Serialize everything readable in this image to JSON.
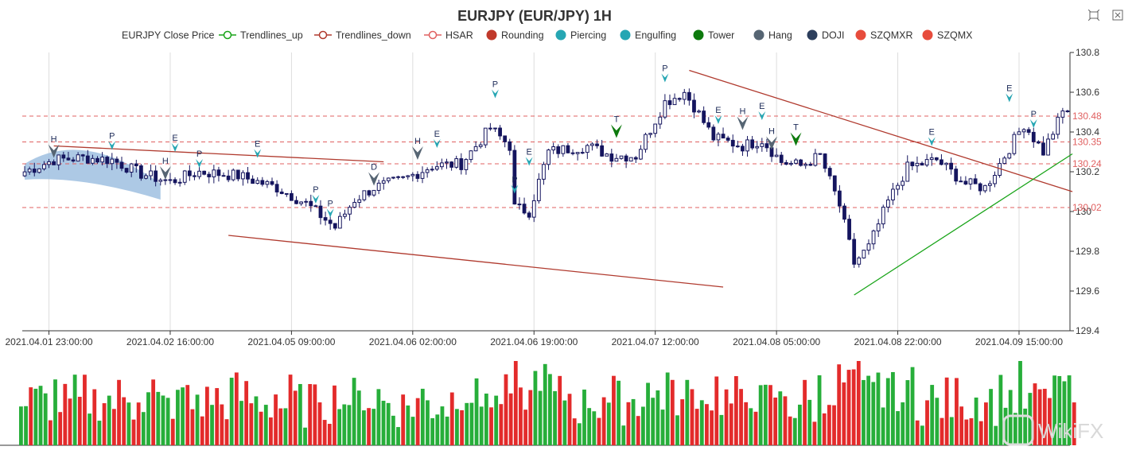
{
  "title": "EURJPY (EUR/JPY) 1H",
  "toolbar": {
    "icons": [
      "zoom-icon",
      "restore-icon"
    ]
  },
  "watermark": "WikiFX",
  "legend": [
    {
      "label": "EURJPY Close Price",
      "marker": "none",
      "color": "#333333"
    },
    {
      "label": "Trendlines_up",
      "marker": "line-circle",
      "color": "#18a418"
    },
    {
      "label": "Trendlines_down",
      "marker": "line-circle",
      "color": "#b03a2e"
    },
    {
      "label": "HSAR",
      "marker": "line-circle",
      "color": "#e06060"
    },
    {
      "label": "Rounding",
      "marker": "dot",
      "color": "#c0392b"
    },
    {
      "label": "Piercing",
      "marker": "dot",
      "color": "#26a6b3"
    },
    {
      "label": "Engulfing",
      "marker": "dot",
      "color": "#26a6b3"
    },
    {
      "label": "Tower",
      "marker": "dot",
      "color": "#0d7a0d"
    },
    {
      "label": "Hang",
      "marker": "dot",
      "color": "#566573"
    },
    {
      "label": "DOJI",
      "marker": "dot",
      "color": "#2c3e5c"
    },
    {
      "label": "SZQMXR",
      "marker": "dot",
      "color": "#e74c3c"
    },
    {
      "label": "SZQMX",
      "marker": "dot",
      "color": "#e74c3c"
    }
  ],
  "chart_data": {
    "type": "candlestick",
    "ylim": [
      129.4,
      130.8
    ],
    "y_ticks": [
      129.4,
      129.6,
      129.8,
      130,
      130.2,
      130.4,
      130.6,
      130.8
    ],
    "x_tick_labels": [
      "2021.04.01 23:00:00",
      "2021.04.02 16:00:00",
      "2021.04.05 09:00:00",
      "2021.04.06 02:00:00",
      "2021.04.06 19:00:00",
      "2021.04.07 12:00:00",
      "2021.04.08 05:00:00",
      "2021.04.08 22:00:00",
      "2021.04.09 15:00:00"
    ],
    "x_tick_bar_index": [
      5,
      30,
      55,
      80,
      105,
      130,
      155,
      180,
      205
    ],
    "bar_count": 216,
    "hsar_levels": [
      130.48,
      130.35,
      130.24,
      130.02
    ],
    "colors": {
      "candle": "#15155e",
      "hsar": "#e06060",
      "trend_up": "#18a418",
      "trend_down": "#b03a2e",
      "vol_up": "#27ae3a",
      "vol_down": "#e32b2b",
      "rounding": "#9fbfe0",
      "piercing": "#26a6b3",
      "tower": "#0d7a0d",
      "hang": "#566573"
    },
    "trendlines_down": [
      {
        "from": {
          "bar": 6,
          "price": 130.33
        },
        "to": {
          "bar": 74,
          "price": 130.25
        }
      },
      {
        "from": {
          "bar": 42,
          "price": 129.88
        },
        "to": {
          "bar": 144,
          "price": 129.62
        }
      },
      {
        "from": {
          "bar": 137,
          "price": 130.71
        },
        "to": {
          "bar": 216,
          "price": 130.1
        }
      }
    ],
    "trendlines_up": [
      {
        "from": {
          "bar": 171,
          "price": 129.58
        },
        "to": {
          "bar": 216,
          "price": 130.29
        }
      }
    ],
    "rounding": {
      "start_bar": 0,
      "end_bar": 28,
      "start_price": 130.2,
      "peak_bar": 12,
      "peak_price": 130.3,
      "end_price": 130.1
    },
    "pattern_marks": [
      {
        "label": "H",
        "bar": 6,
        "price": 130.27,
        "type": "hang"
      },
      {
        "label": "P",
        "bar": 18,
        "price": 130.31,
        "type": "piercing"
      },
      {
        "label": "E",
        "bar": 31,
        "price": 130.3,
        "type": "piercing"
      },
      {
        "label": "H",
        "bar": 29,
        "price": 130.16,
        "type": "hang"
      },
      {
        "label": "P",
        "bar": 36,
        "price": 130.22,
        "type": "piercing"
      },
      {
        "label": "E",
        "bar": 48,
        "price": 130.27,
        "type": "piercing"
      },
      {
        "label": "D",
        "bar": 72,
        "price": 130.13,
        "type": "hang"
      },
      {
        "label": "H",
        "bar": 81,
        "price": 130.26,
        "type": "hang"
      },
      {
        "label": "E",
        "bar": 85,
        "price": 130.32,
        "type": "piercing"
      },
      {
        "label": "P",
        "bar": 60,
        "price": 130.04,
        "type": "piercing"
      },
      {
        "label": "P",
        "bar": 63,
        "price": 129.97,
        "type": "piercing"
      },
      {
        "label": "P",
        "bar": 97,
        "price": 130.57,
        "type": "piercing"
      },
      {
        "label": "P",
        "bar": 101,
        "price": 130.09,
        "type": "piercing"
      },
      {
        "label": "E",
        "bar": 104,
        "price": 130.23,
        "type": "piercing"
      },
      {
        "label": "T",
        "bar": 122,
        "price": 130.37,
        "type": "tower"
      },
      {
        "label": "P",
        "bar": 132,
        "price": 130.65,
        "type": "piercing"
      },
      {
        "label": "E",
        "bar": 143,
        "price": 130.44,
        "type": "piercing"
      },
      {
        "label": "H",
        "bar": 148,
        "price": 130.41,
        "type": "hang"
      },
      {
        "label": "E",
        "bar": 152,
        "price": 130.46,
        "type": "piercing"
      },
      {
        "label": "H",
        "bar": 154,
        "price": 130.31,
        "type": "hang"
      },
      {
        "label": "T",
        "bar": 159,
        "price": 130.33,
        "type": "tower"
      },
      {
        "label": "E",
        "bar": 187,
        "price": 130.33,
        "type": "piercing"
      },
      {
        "label": "E",
        "bar": 203,
        "price": 130.55,
        "type": "piercing"
      },
      {
        "label": "P",
        "bar": 208,
        "price": 130.42,
        "type": "piercing"
      }
    ]
  }
}
